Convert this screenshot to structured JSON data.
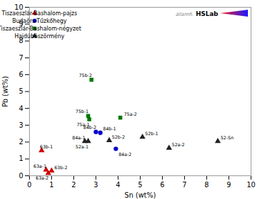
{
  "chart_data": {
    "type": "scatter",
    "xlabel": "Sn (wt%)",
    "ylabel": "Pb (wt%)",
    "xlim": [
      0,
      10
    ],
    "ylim": [
      0,
      10
    ],
    "xticks": [
      0,
      1,
      2,
      3,
      4,
      5,
      6,
      7,
      8,
      9,
      10
    ],
    "yticks": [
      0,
      1,
      2,
      3,
      4,
      5,
      6,
      7,
      8,
      9,
      10
    ],
    "legend": "upper left",
    "annotations": [
      "államfi.",
      "HSLab"
    ],
    "series": [
      {
        "name": "Tiszaeszlár-Bashalom-pajzs",
        "color": "#cc0000",
        "marker": "triangle",
        "x": [
          0.55,
          0.75,
          0.85,
          1.0
        ],
        "y": [
          1.5,
          0.35,
          0.15,
          0.3
        ],
        "labels": [
          "63b-1",
          "63a-1",
          "63a-2",
          "63b-2"
        ]
      },
      {
        "name": "Budaörs-Tűzkőhegy",
        "color": "#0000cc",
        "marker": "circle",
        "x": [
          3.0,
          3.2,
          3.9
        ],
        "y": [
          2.6,
          2.55,
          1.6
        ],
        "labels": [
          "84b-2",
          "84b-1",
          "84a-2"
        ]
      },
      {
        "name": "Tiszaeszlár-Bashalom-négyzet",
        "color": "#007700",
        "marker": "square",
        "x": [
          2.8,
          2.65,
          2.7,
          4.1
        ],
        "y": [
          5.7,
          3.55,
          3.35,
          3.45
        ],
        "labels": [
          "75b-2",
          "75b-1",
          "75a-1",
          "75a-2"
        ]
      },
      {
        "name": "Hajdúböszörmény",
        "color": "#222222",
        "marker": "triangle",
        "x": [
          2.5,
          2.65,
          3.6,
          5.1,
          6.3,
          8.5
        ],
        "y": [
          2.05,
          2.05,
          2.1,
          2.3,
          1.65,
          2.05
        ],
        "labels": [
          "84a-1",
          "52a-1",
          "52b-2",
          "52b-1",
          "52a-2",
          "52-Sn"
        ]
      }
    ]
  }
}
